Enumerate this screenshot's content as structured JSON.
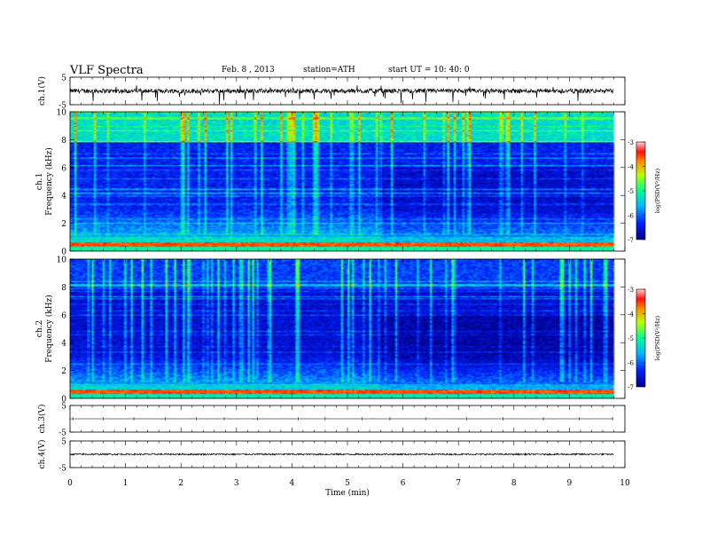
{
  "header": {
    "title": "VLF  Spectra",
    "date": "Feb. 8 , 2013",
    "station": "station=ATH",
    "start": "start  UT  =    10: 40: 0"
  },
  "chart_data": [
    {
      "type": "line",
      "name": "ch1-waveform",
      "ylabel": "ch.1(V)",
      "ylim": [
        -5,
        5
      ],
      "yticks": [
        5,
        -5
      ],
      "xlim": [
        0,
        10
      ],
      "x_end_min": 9.8,
      "baseline": 0,
      "noise_amplitude": 0.8
    },
    {
      "type": "heatmap",
      "name": "ch1-spectrogram",
      "ylabel": "ch.1\nFrequency  (kHz)",
      "ylim": [
        0,
        10
      ],
      "yticks": [
        0,
        2,
        4,
        6,
        8,
        10
      ],
      "xlim": [
        0,
        10
      ],
      "x_end_min": 9.8,
      "colorbar": {
        "label": "log(PSD(V²/Hz)",
        "range": [
          -7,
          -3
        ],
        "ticks": [
          -3,
          -4,
          -5,
          -6,
          -7
        ]
      },
      "description_bands": {
        "high_freq_level": -5.3,
        "mid_freq_level": -6.4,
        "low_freq_level": -5.6,
        "change_time_min": 5.6
      }
    },
    {
      "type": "heatmap",
      "name": "ch2-spectrogram",
      "ylabel": "ch.2\nFrequency  (kHz)",
      "ylim": [
        0,
        10
      ],
      "yticks": [
        0,
        2,
        4,
        6,
        8,
        10
      ],
      "xlim": [
        0,
        10
      ],
      "x_end_min": 9.8,
      "colorbar": {
        "label": "log(PSD(V²/Hz)",
        "range": [
          -7,
          -3
        ],
        "ticks": [
          -3,
          -4,
          -5,
          -6,
          -7
        ]
      },
      "description_bands": {
        "high_freq_level": -6.2,
        "mid_freq_level": -6.6,
        "low_freq_level": -5.7,
        "change_time_min": 5.6
      }
    },
    {
      "type": "line",
      "name": "ch3-waveform",
      "ylabel": "ch.3(V)",
      "ylim": [
        -5,
        5
      ],
      "yticks": [
        5,
        -5
      ],
      "xlim": [
        0,
        10
      ],
      "x_end_min": 9.8,
      "baseline": 0,
      "noise_amplitude": 0.02
    },
    {
      "type": "line",
      "name": "ch4-waveform",
      "ylabel": "ch.4(V)",
      "ylim": [
        -5,
        5
      ],
      "yticks": [
        5,
        -5
      ],
      "xlim": [
        0,
        10
      ],
      "x_end_min": 9.8,
      "baseline": 0,
      "noise_amplitude": 0.3
    }
  ],
  "x_axis": {
    "label": "Time  (min)",
    "ticks": [
      0,
      1,
      2,
      3,
      4,
      5,
      6,
      7,
      8,
      9,
      10
    ]
  }
}
